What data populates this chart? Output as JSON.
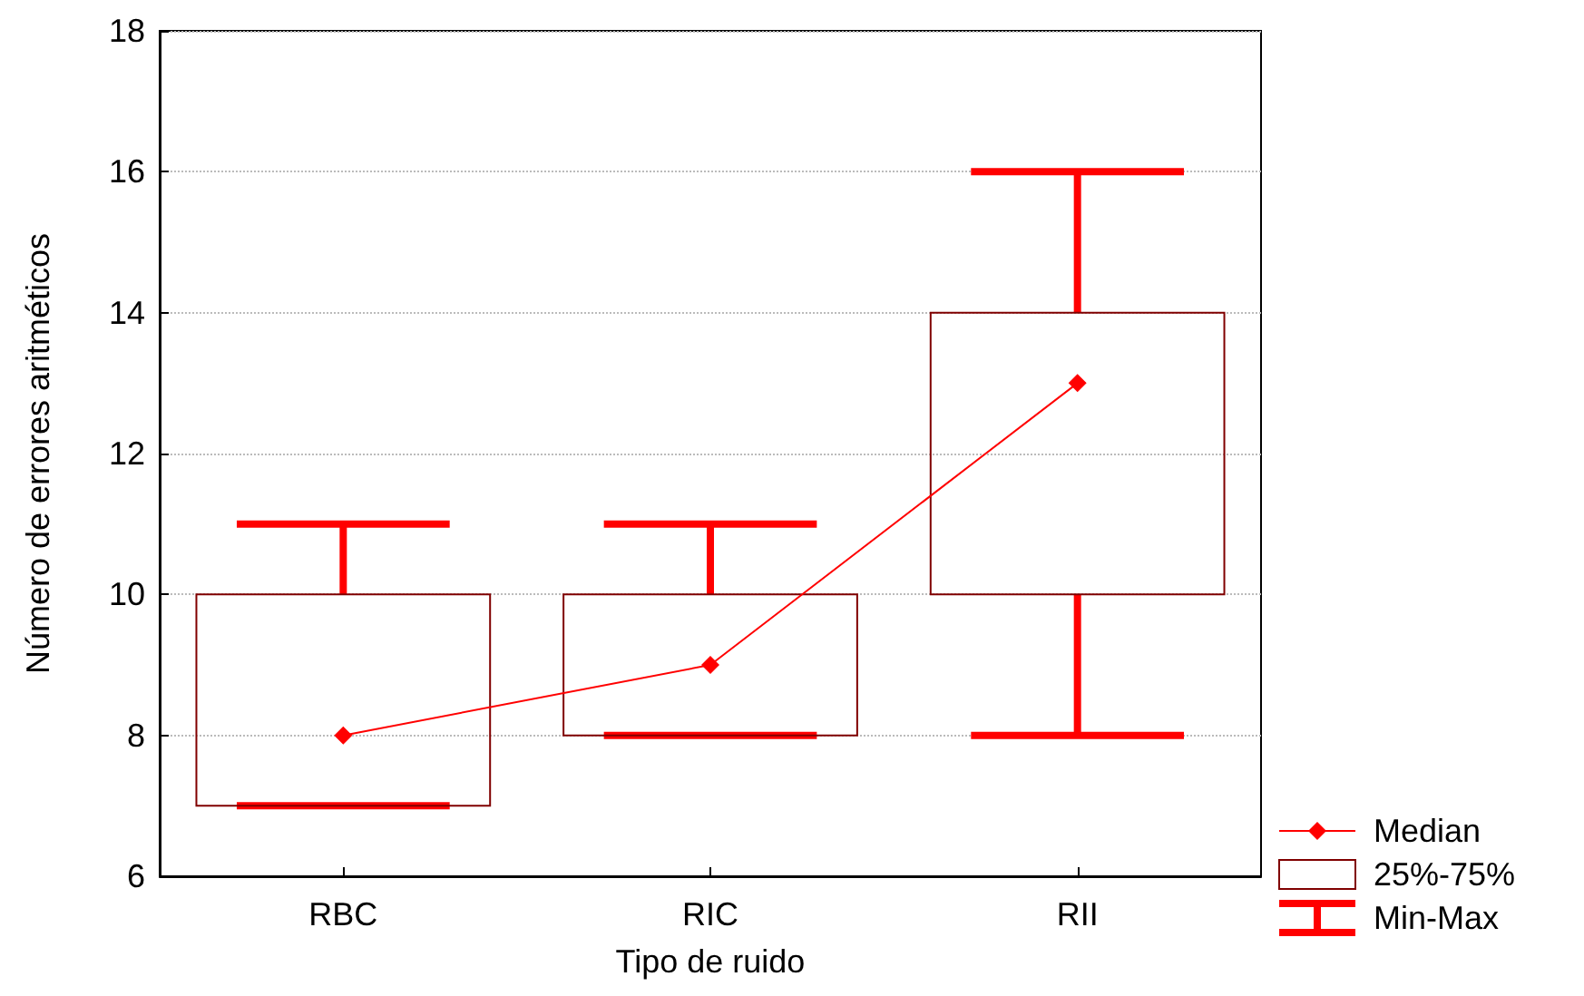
{
  "chart_data": {
    "type": "box",
    "xlabel": "Tipo de ruido",
    "ylabel": "Número de errores aritméticos",
    "categories": [
      "RBC",
      "RIC",
      "RII"
    ],
    "series": [
      {
        "name": "Median",
        "type": "line",
        "color": "#ff0000",
        "marker": "diamond",
        "values": [
          8,
          9,
          13
        ]
      },
      {
        "name": "25%-75%",
        "color": "#800000",
        "boxes": [
          {
            "low": 7,
            "q1": 7,
            "q3": 10,
            "high": 11
          },
          {
            "low": 8,
            "q1": 8,
            "q3": 10,
            "high": 11
          },
          {
            "low": 8,
            "q1": 10,
            "q3": 14,
            "high": 16
          }
        ]
      }
    ],
    "annotations": [
      "Min-Max"
    ],
    "ylim": [
      6,
      18
    ],
    "yticks": [
      6,
      8,
      10,
      12,
      14,
      16,
      18
    ],
    "grid": "y",
    "legend": "bottom right"
  }
}
